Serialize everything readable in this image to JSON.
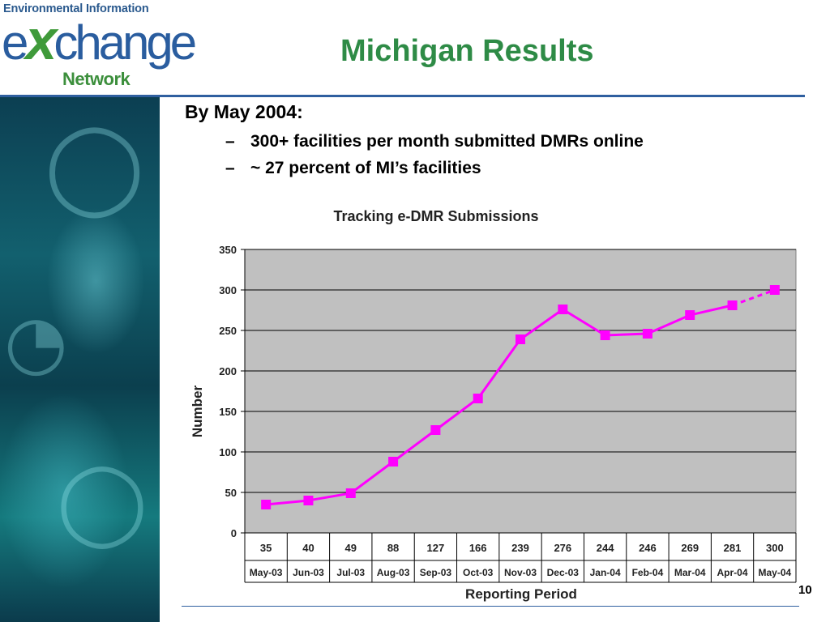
{
  "logo": {
    "top_text": "Environmental Information",
    "main_x": "x",
    "main_e": "e",
    "main_rest": "change",
    "network": "Network"
  },
  "slide": {
    "title": "Michigan Results",
    "heading": "By May 2004:",
    "bullets": [
      {
        "dash": "–",
        "text": "300+ facilities per month submitted DMRs online"
      },
      {
        "dash": "–",
        "text": "~ 27 percent of MI’s facilities"
      }
    ],
    "page_number": "10"
  },
  "colors": {
    "title_green": "#2e8b46",
    "rule_blue": "#2f5f9f",
    "series_magenta": "#ff00ff",
    "plot_bg": "#c0c0c0"
  },
  "chart_data": {
    "type": "line",
    "title": "Tracking e-DMR Submissions",
    "xlabel": "Reporting Period",
    "ylabel": "Number",
    "ylim": [
      0,
      350
    ],
    "yticks": [
      0,
      50,
      100,
      150,
      200,
      250,
      300,
      350
    ],
    "grid": true,
    "categories": [
      "May-03",
      "Jun-03",
      "Jul-03",
      "Aug-03",
      "Sep-03",
      "Oct-03",
      "Nov-03",
      "Dec-03",
      "Jan-04",
      "Feb-04",
      "Mar-04",
      "Apr-04",
      "May-04"
    ],
    "values": [
      35,
      40,
      49,
      88,
      127,
      166,
      239,
      276,
      244,
      246,
      269,
      281,
      300
    ],
    "data_table": true,
    "projected_last_segment": true,
    "legend": "none"
  }
}
